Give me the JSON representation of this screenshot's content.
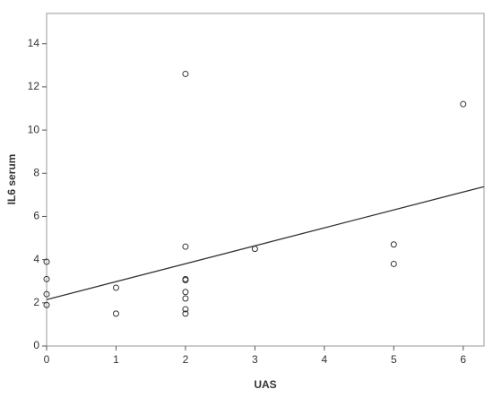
{
  "chart_data": {
    "type": "scatter",
    "x_label": "UAS",
    "y_label": "IL6 serum",
    "series": [
      {
        "color": "#333333",
        "x": [
          0,
          0,
          0,
          0,
          1,
          1,
          2,
          2,
          2,
          2,
          2,
          2,
          2,
          2,
          3,
          5,
          5,
          6
        ],
        "values": [
          3.9,
          3.1,
          2.4,
          1.9,
          2.7,
          1.5,
          12.6,
          4.6,
          3.1,
          3.05,
          2.5,
          2.2,
          1.7,
          1.5,
          4.5,
          4.7,
          3.8,
          11.2
        ]
      }
    ],
    "fit_line": {
      "color": "#333333",
      "x": [
        0,
        6.3
      ],
      "values": [
        2.15,
        7.38
      ]
    },
    "xlim": [
      0,
      6.3
    ],
    "xticks": [
      0,
      1,
      2,
      3,
      4,
      5,
      6
    ],
    "ylim": [
      0,
      15.4
    ],
    "yticks": [
      0,
      2,
      4,
      6,
      8,
      10,
      12,
      14
    ]
  }
}
